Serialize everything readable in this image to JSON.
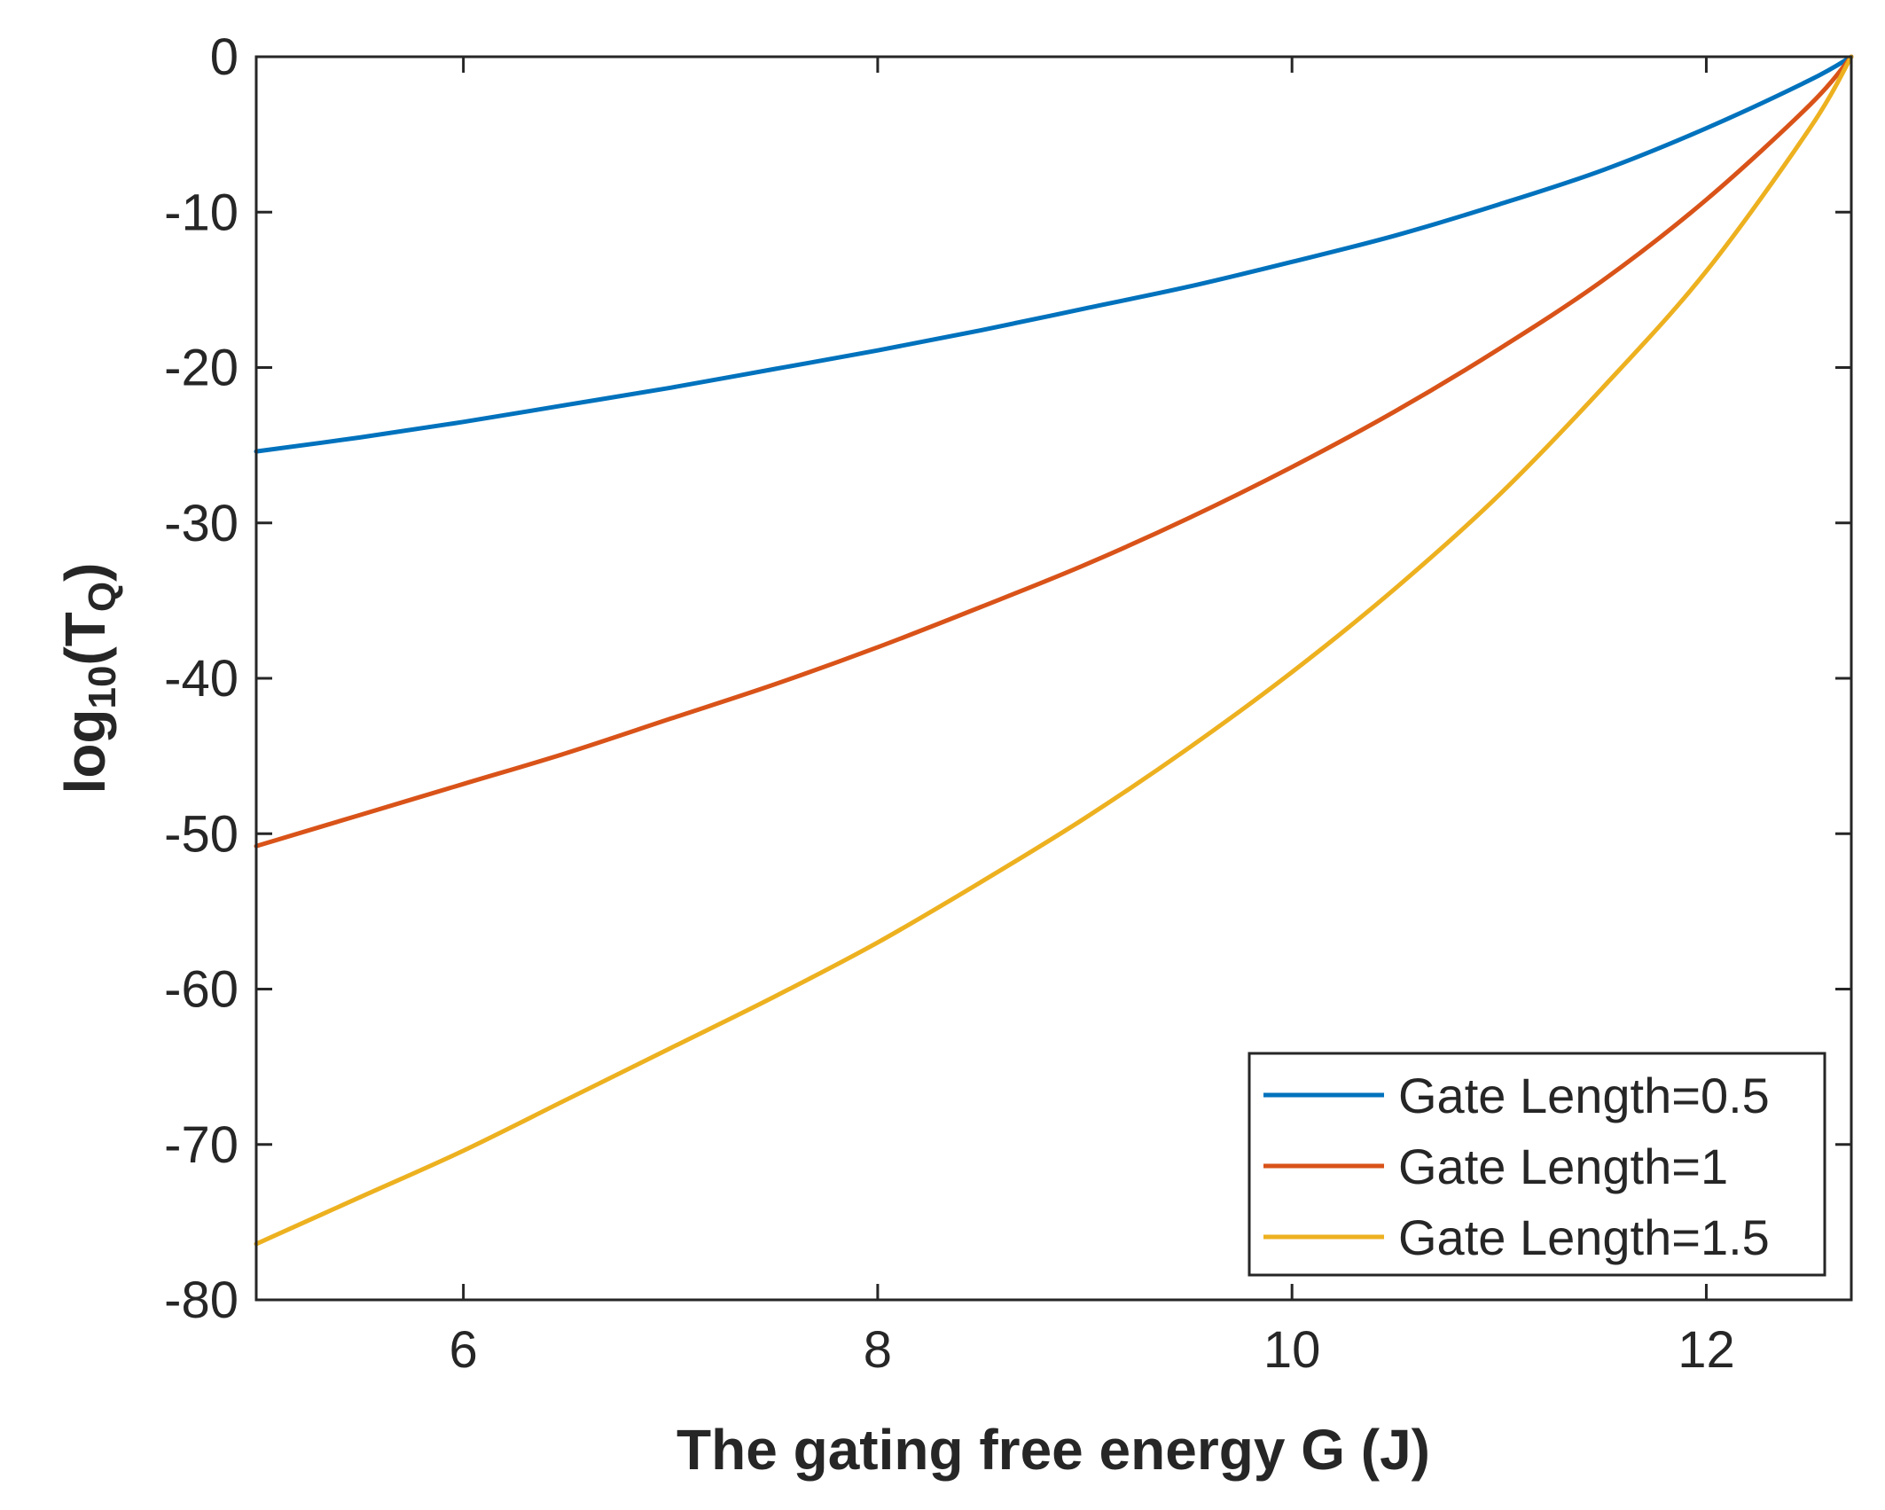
{
  "chart_data": {
    "type": "line",
    "xlabel": "The gating free energy G (J)",
    "ylabel_prefix": "log",
    "ylabel_sub1": "10",
    "ylabel_mid": "(T",
    "ylabel_sub2": "Q",
    "ylabel_suffix": ")",
    "xlim": [
      5,
      12.7
    ],
    "ylim": [
      -80,
      0
    ],
    "xticks": [
      6,
      8,
      10,
      12
    ],
    "yticks": [
      0,
      -10,
      -20,
      -30,
      -40,
      -50,
      -60,
      -70,
      -80
    ],
    "legend_position": "bottom-right",
    "series": [
      {
        "name": "Gate Length=0.5",
        "color": "#0072BD",
        "x": [
          5,
          5.5,
          6,
          6.5,
          7,
          7.5,
          8,
          8.5,
          9,
          9.5,
          10,
          10.5,
          11,
          11.5,
          12,
          12.5,
          12.7
        ],
        "y": [
          -25.4,
          -24.5,
          -23.5,
          -22.4,
          -21.3,
          -20.1,
          -18.9,
          -17.6,
          -16.2,
          -14.8,
          -13.2,
          -11.5,
          -9.5,
          -7.3,
          -4.6,
          -1.5,
          0
        ]
      },
      {
        "name": "Gate Length=1",
        "color": "#D95319",
        "x": [
          5,
          5.5,
          6,
          6.5,
          7,
          7.5,
          8,
          8.5,
          9,
          9.5,
          10,
          10.5,
          11,
          11.5,
          12,
          12.5,
          12.7
        ],
        "y": [
          -50.8,
          -48.8,
          -46.8,
          -44.8,
          -42.6,
          -40.4,
          -38.0,
          -35.4,
          -32.7,
          -29.7,
          -26.4,
          -22.8,
          -18.8,
          -14.4,
          -9.2,
          -3.1,
          0
        ]
      },
      {
        "name": "Gate Length=1.5",
        "color": "#EDB120",
        "x": [
          5,
          5.5,
          6,
          6.5,
          7,
          7.5,
          8,
          8.5,
          9,
          9.5,
          10,
          10.5,
          11,
          11.5,
          12,
          12.5,
          12.7
        ],
        "y": [
          -76.4,
          -73.4,
          -70.4,
          -67.1,
          -63.8,
          -60.5,
          -57.0,
          -53.1,
          -49.0,
          -44.5,
          -39.6,
          -34.2,
          -28.2,
          -21.3,
          -13.8,
          -4.6,
          0
        ]
      }
    ]
  }
}
